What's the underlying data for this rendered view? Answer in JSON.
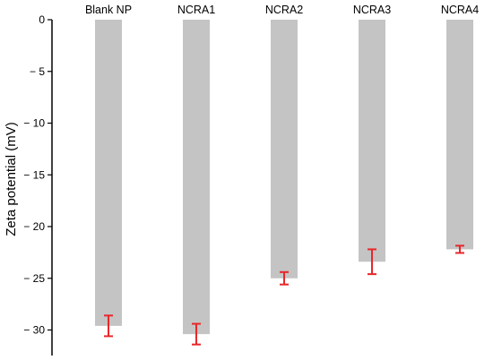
{
  "chart_data": {
    "type": "bar",
    "categories": [
      "Blank NP",
      "NCRA1",
      "NCRA2",
      "NCRA3",
      "NCRA4"
    ],
    "values": [
      -29.6,
      -30.4,
      -25.0,
      -23.4,
      -22.2
    ],
    "errors": [
      1.0,
      1.0,
      0.6,
      1.2,
      0.35
    ],
    "ylabel": "Zeta potential (mV)",
    "xlabel": "",
    "ylim": [
      -32.5,
      0
    ],
    "yticks": [
      0,
      -5,
      -10,
      -15,
      -20,
      -25,
      -30
    ],
    "ytick_labels": [
      "0",
      "− 5",
      "− 10",
      "− 15",
      "− 20",
      "− 25",
      "− 30"
    ],
    "category_axis_position": "top",
    "grid": false,
    "legend": "none",
    "colors": {
      "bar": "#c4c4c4",
      "error_bar": "#e8272a",
      "axis": "#000000"
    }
  }
}
